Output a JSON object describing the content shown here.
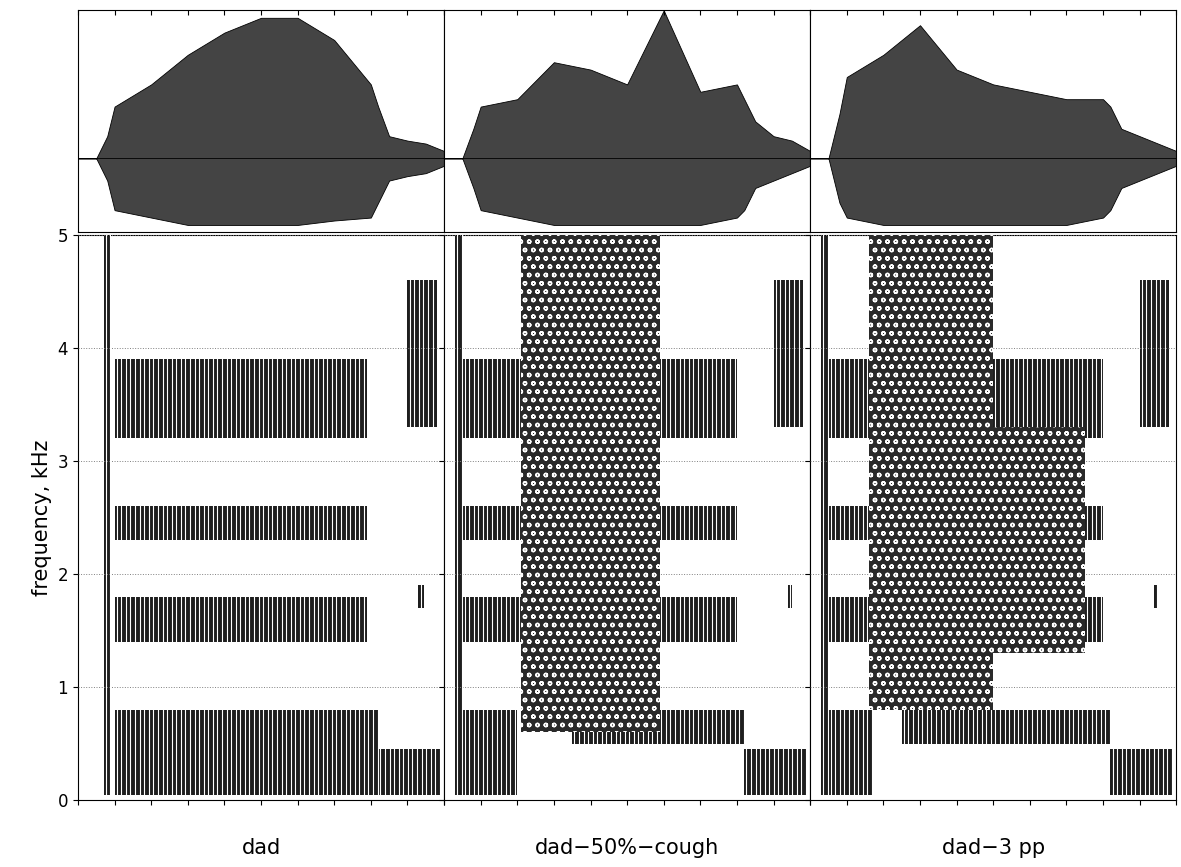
{
  "chart_data": [
    {
      "type": "spectrogram",
      "xlabel": "dad",
      "ylabel": "frequency, kHz",
      "xlim": [
        0,
        100
      ],
      "xticks": [
        0,
        10,
        20,
        30,
        40,
        50,
        60,
        70,
        80,
        90,
        100
      ],
      "ylim": [
        0,
        5
      ],
      "yticks": [
        0,
        1,
        2,
        3,
        4,
        5
      ],
      "grid": true,
      "tick_labels": "y",
      "formants": [
        {
          "x": [
            7,
            9
          ],
          "y": [
            0.05,
            5
          ]
        },
        {
          "x": [
            10,
            82
          ],
          "y": [
            0.05,
            0.8
          ]
        },
        {
          "x": [
            10,
            79
          ],
          "y": [
            1.4,
            1.8
          ]
        },
        {
          "x": [
            10,
            79
          ],
          "y": [
            2.3,
            2.6
          ]
        },
        {
          "x": [
            10,
            79
          ],
          "y": [
            3.2,
            3.9
          ]
        },
        {
          "x": [
            82,
            99
          ],
          "y": [
            0.05,
            0.45
          ]
        },
        {
          "x": [
            90,
            98
          ],
          "y": [
            3.3,
            4.6
          ]
        },
        {
          "x": [
            93,
            94.5
          ],
          "y": [
            1.7,
            1.9
          ]
        }
      ],
      "noise": [],
      "waveform": {
        "ylim": [
          -0.5,
          1.0
        ],
        "x": [
          0,
          5,
          8,
          10,
          20,
          30,
          40,
          50,
          60,
          70,
          80,
          82,
          85,
          90,
          95,
          100
        ],
        "upper": [
          0,
          0,
          0.15,
          0.35,
          0.5,
          0.7,
          0.85,
          0.95,
          0.95,
          0.8,
          0.5,
          0.35,
          0.15,
          0.12,
          0.1,
          0.05
        ],
        "lower": [
          0,
          0,
          -0.15,
          -0.35,
          -0.4,
          -0.45,
          -0.45,
          -0.45,
          -0.45,
          -0.42,
          -0.4,
          -0.3,
          -0.15,
          -0.12,
          -0.1,
          -0.05
        ]
      }
    },
    {
      "type": "spectrogram",
      "xlabel": "dad−50%−cough",
      "xlim": [
        0,
        100
      ],
      "xticks": [
        0,
        10,
        20,
        30,
        40,
        50,
        60,
        70,
        80,
        90,
        100
      ],
      "ylim": [
        0,
        5
      ],
      "yticks": [
        0,
        1,
        2,
        3,
        4,
        5
      ],
      "grid": true,
      "tick_labels": false,
      "formants": [
        {
          "x": [
            3,
            5
          ],
          "y": [
            0.05,
            5
          ]
        },
        {
          "x": [
            5,
            20
          ],
          "y": [
            0.05,
            0.8
          ]
        },
        {
          "x": [
            35,
            82
          ],
          "y": [
            0.5,
            0.8
          ]
        },
        {
          "x": [
            5,
            80
          ],
          "y": [
            1.4,
            1.8
          ]
        },
        {
          "x": [
            5,
            80
          ],
          "y": [
            2.3,
            2.6
          ]
        },
        {
          "x": [
            5,
            80
          ],
          "y": [
            3.2,
            3.9
          ]
        },
        {
          "x": [
            82,
            99
          ],
          "y": [
            0.05,
            0.45
          ]
        },
        {
          "x": [
            90,
            98
          ],
          "y": [
            3.3,
            4.6
          ]
        },
        {
          "x": [
            94,
            95
          ],
          "y": [
            1.7,
            1.9
          ]
        }
      ],
      "noise": [
        {
          "x": [
            21,
            59
          ],
          "y": [
            0.6,
            5
          ]
        }
      ],
      "waveform": {
        "ylim": [
          -0.5,
          1.0
        ],
        "x": [
          0,
          5,
          8,
          10,
          20,
          30,
          40,
          50,
          60,
          70,
          80,
          82,
          85,
          90,
          95,
          100
        ],
        "upper": [
          0,
          0,
          0.2,
          0.35,
          0.4,
          0.65,
          0.6,
          0.5,
          1.0,
          0.45,
          0.5,
          0.4,
          0.25,
          0.15,
          0.12,
          0.05
        ],
        "lower": [
          0,
          0,
          -0.2,
          -0.35,
          -0.4,
          -0.45,
          -0.45,
          -0.45,
          -0.45,
          -0.45,
          -0.4,
          -0.35,
          -0.2,
          -0.15,
          -0.1,
          -0.05
        ]
      }
    },
    {
      "type": "spectrogram",
      "xlabel": "dad−3 pp",
      "xlim": [
        0,
        100
      ],
      "xticks": [
        0,
        10,
        20,
        30,
        40,
        50,
        60,
        70,
        80,
        90,
        100
      ],
      "ylim": [
        0,
        5
      ],
      "yticks": [
        0,
        1,
        2,
        3,
        4,
        5
      ],
      "grid": true,
      "tick_labels": false,
      "formants": [
        {
          "x": [
            3,
            5
          ],
          "y": [
            0.05,
            5
          ]
        },
        {
          "x": [
            5,
            17
          ],
          "y": [
            0.05,
            0.8
          ]
        },
        {
          "x": [
            25,
            82
          ],
          "y": [
            0.5,
            0.8
          ]
        },
        {
          "x": [
            5,
            80
          ],
          "y": [
            1.4,
            1.8
          ]
        },
        {
          "x": [
            5,
            80
          ],
          "y": [
            2.3,
            2.6
          ]
        },
        {
          "x": [
            5,
            80
          ],
          "y": [
            3.2,
            3.9
          ]
        },
        {
          "x": [
            82,
            99
          ],
          "y": [
            0.05,
            0.45
          ]
        },
        {
          "x": [
            90,
            98
          ],
          "y": [
            3.3,
            4.6
          ]
        },
        {
          "x": [
            94,
            95
          ],
          "y": [
            1.7,
            1.9
          ]
        }
      ],
      "noise": [
        {
          "x": [
            16,
            50
          ],
          "y": [
            0.8,
            5
          ]
        },
        {
          "x": [
            50,
            75
          ],
          "y": [
            1.3,
            3.3
          ]
        }
      ],
      "waveform": {
        "ylim": [
          -0.5,
          1.0
        ],
        "x": [
          0,
          5,
          8,
          10,
          20,
          30,
          40,
          50,
          60,
          70,
          80,
          82,
          85,
          90,
          95,
          100
        ],
        "upper": [
          0,
          0,
          0.3,
          0.55,
          0.7,
          0.9,
          0.6,
          0.5,
          0.45,
          0.4,
          0.4,
          0.35,
          0.2,
          0.15,
          0.1,
          0.05
        ],
        "lower": [
          0,
          0,
          -0.3,
          -0.4,
          -0.45,
          -0.45,
          -0.45,
          -0.45,
          -0.45,
          -0.45,
          -0.4,
          -0.35,
          -0.2,
          -0.15,
          -0.1,
          -0.05
        ]
      }
    }
  ]
}
